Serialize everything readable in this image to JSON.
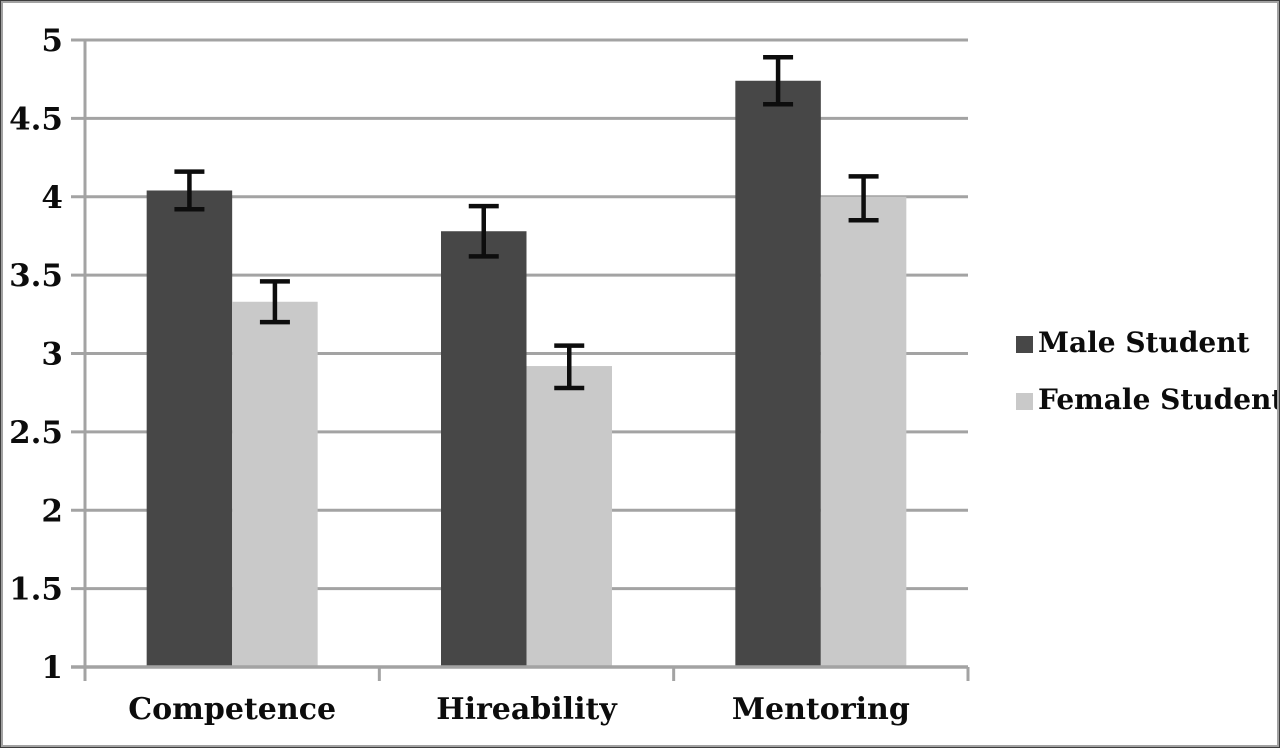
{
  "chart_data": {
    "type": "bar",
    "title": "",
    "xlabel": "",
    "ylabel": "",
    "categories": [
      "Competence",
      "Hireability",
      "Mentoring"
    ],
    "series": [
      {
        "name": "Male Student",
        "color": "#474747",
        "values": [
          4.04,
          3.78,
          4.74
        ],
        "error_low": [
          3.92,
          3.62,
          4.59
        ],
        "error_high": [
          4.16,
          3.94,
          4.89
        ]
      },
      {
        "name": "Female Student",
        "color": "#c9c9c9",
        "values": [
          3.33,
          2.92,
          4.0
        ],
        "error_low": [
          3.2,
          2.78,
          3.85
        ],
        "error_high": [
          3.46,
          3.05,
          4.13
        ]
      }
    ],
    "ylim": [
      1,
      5
    ],
    "yticks": [
      {
        "value": 1,
        "label": "1"
      },
      {
        "value": 1.5,
        "label": "1.5"
      },
      {
        "value": 2,
        "label": "2"
      },
      {
        "value": 2.5,
        "label": "2.5"
      },
      {
        "value": 3,
        "label": "3"
      },
      {
        "value": 3.5,
        "label": "3.5"
      },
      {
        "value": 4,
        "label": "4"
      },
      {
        "value": 4.5,
        "label": "4.5"
      },
      {
        "value": 5,
        "label": "5"
      }
    ],
    "grid": true,
    "legend_position": "right",
    "colors": {
      "grid": "#a3a3a3",
      "axis": "#a3a3a3",
      "error_bar": "#0d0d0d",
      "text": "#0c0c0c",
      "background": "#ffffff",
      "frame_border": "#8f8f8f"
    }
  },
  "legend": {
    "items": [
      {
        "label": "Male Student",
        "color": "#474747"
      },
      {
        "label": "Female Student",
        "color": "#c9c9c9"
      }
    ]
  }
}
